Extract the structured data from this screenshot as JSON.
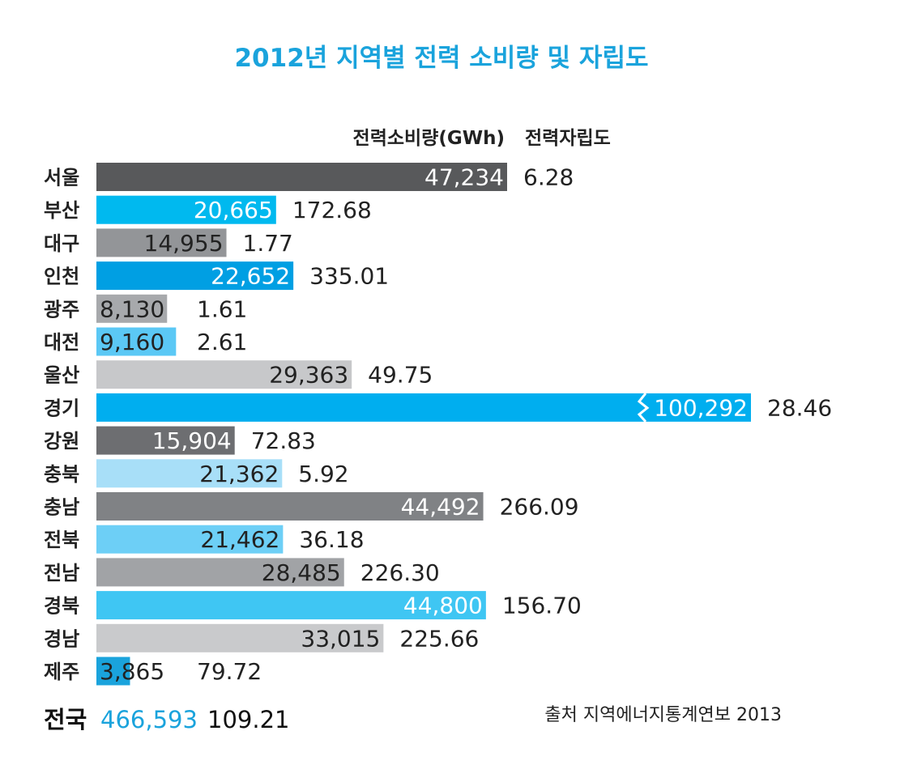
{
  "title": "2012년 지역별 전력 소비량 및 자립도",
  "header": {
    "consumption": "전력소비량(GWh)",
    "ratio": "전력자립도"
  },
  "total": {
    "label": "전국",
    "value": "466,593",
    "ratio": "109.21"
  },
  "source": "출처 지역에너지통계연보 2013",
  "chart_data": {
    "type": "bar",
    "orientation": "horizontal",
    "title": "2012년 지역별 전력 소비량 및 자립도",
    "categories": [
      "서울",
      "부산",
      "대구",
      "인천",
      "광주",
      "대전",
      "울산",
      "경기",
      "강원",
      "충북",
      "충남",
      "전북",
      "전남",
      "경북",
      "경남",
      "제주"
    ],
    "series": [
      {
        "name": "전력소비량(GWh)",
        "values": [
          47234,
          20665,
          14955,
          22652,
          8130,
          9160,
          29363,
          100292,
          15904,
          21362,
          44492,
          21462,
          28485,
          44800,
          33015,
          3865
        ],
        "labels": [
          "47,234",
          "20,665",
          "14,955",
          "22,652",
          "8,130",
          "9,160",
          "29,363",
          "100,292",
          "15,904",
          "21,362",
          "44,492",
          "21,462",
          "28,485",
          "44,800",
          "33,015",
          "3,865"
        ]
      },
      {
        "name": "전력자립도",
        "values": [
          6.28,
          172.68,
          1.77,
          335.01,
          1.61,
          2.61,
          49.75,
          28.46,
          72.83,
          5.92,
          266.09,
          36.18,
          226.3,
          156.7,
          225.66,
          79.72
        ],
        "labels": [
          "6.28",
          "172.68",
          "1.77",
          "335.01",
          "1.61",
          "2.61",
          "49.75",
          "28.46",
          "72.83",
          "5.92",
          "266.09",
          "36.18",
          "226.30",
          "156.70",
          "225.66",
          "79.72"
        ]
      }
    ],
    "bar_colors": [
      "#58595b",
      "#00b9ef",
      "#939598",
      "#009fe3",
      "#a7a9ac",
      "#5bc8f5",
      "#c7c8ca",
      "#00aeef",
      "#6d6e71",
      "#a8dff8",
      "#808285",
      "#6dcff6",
      "#a1a3a6",
      "#3fc6f3",
      "#c9cacc",
      "#1aa3dc"
    ],
    "value_text_colors": [
      "#ffffff",
      "#ffffff",
      "#222222",
      "#ffffff",
      "#222222",
      "#222222",
      "#222222",
      "#ffffff",
      "#ffffff",
      "#222222",
      "#ffffff",
      "#222222",
      "#222222",
      "#ffffff",
      "#222222",
      "#222222"
    ],
    "broken_axis_category": "경기",
    "grid": false,
    "legend": "none"
  }
}
